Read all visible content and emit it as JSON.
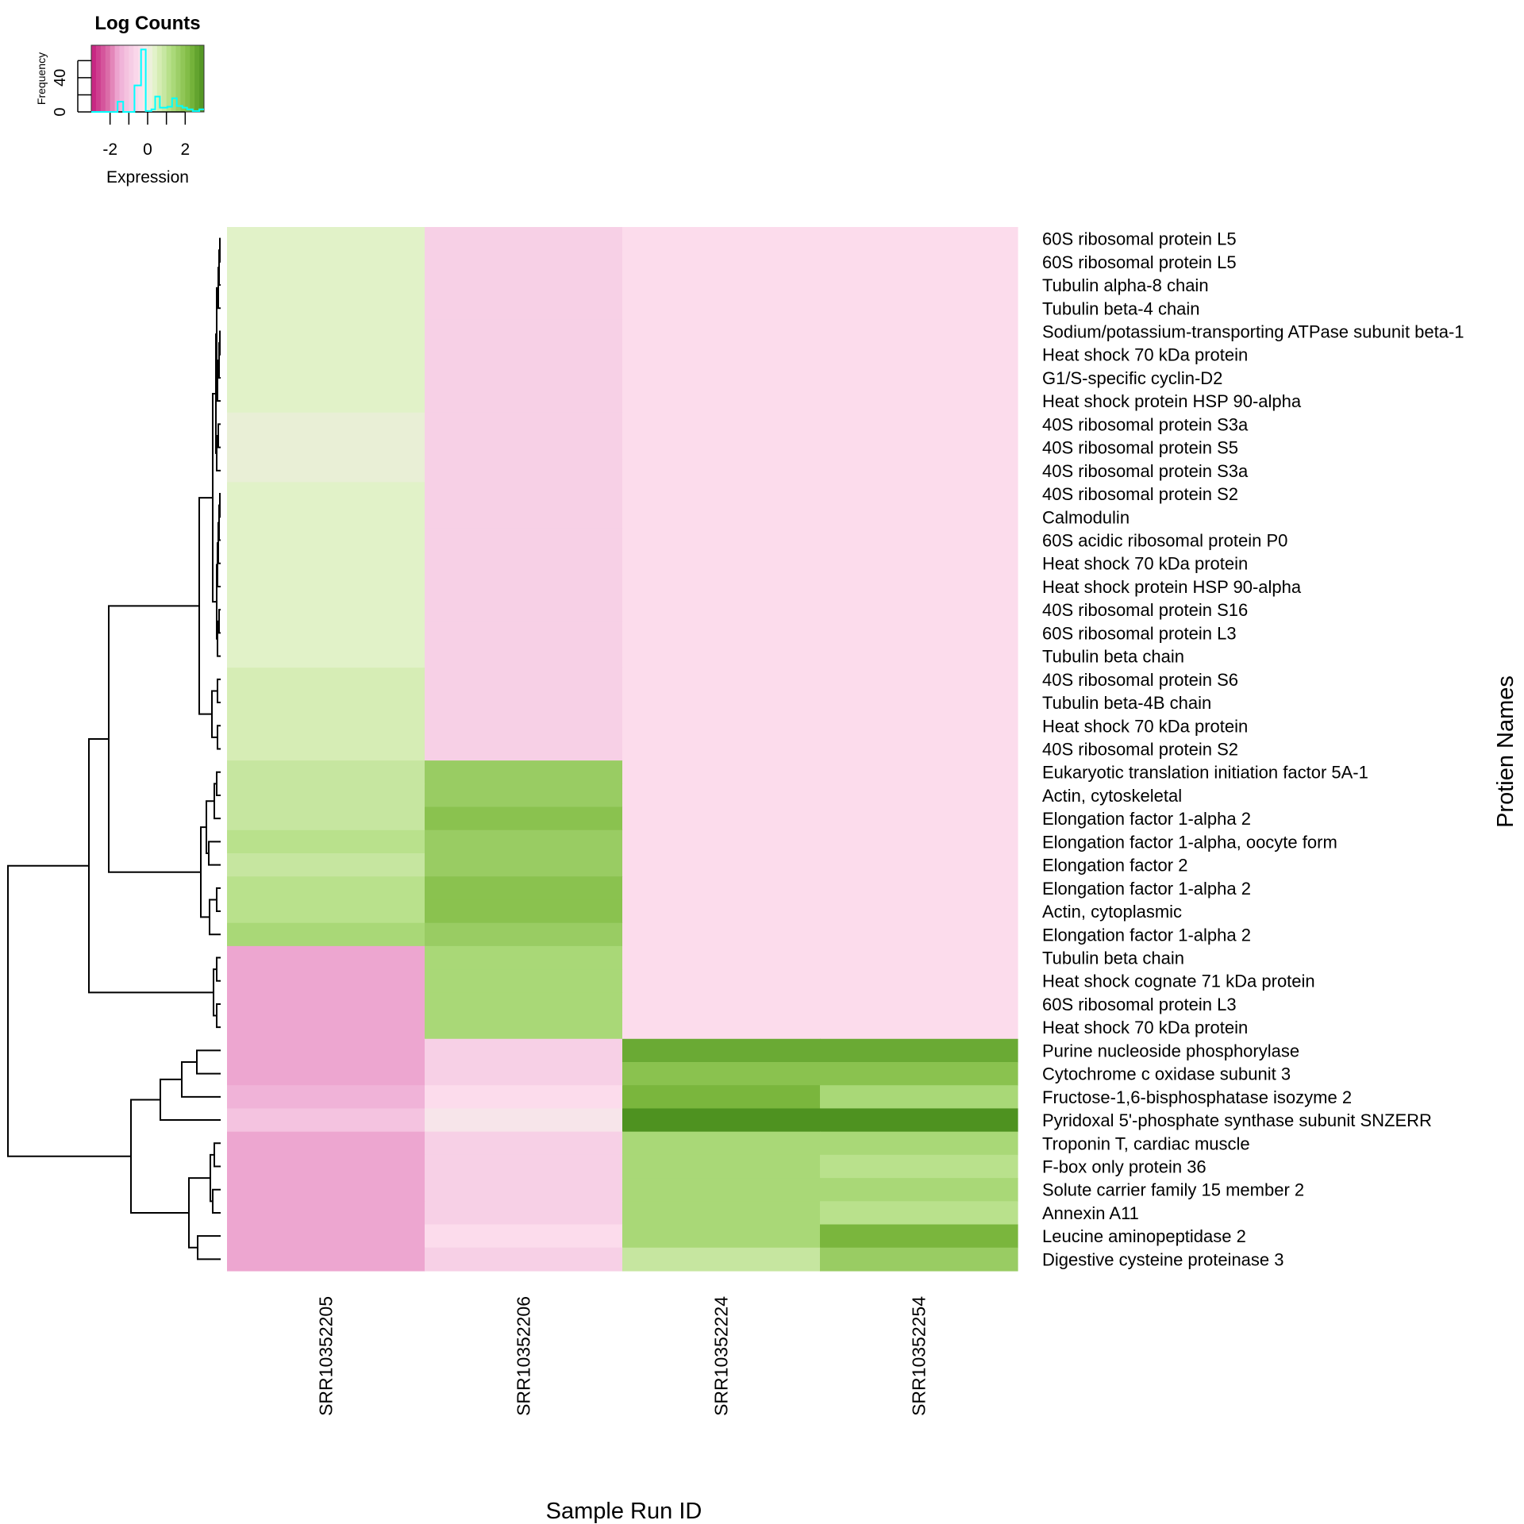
{
  "chart_data": {
    "type": "heatmap",
    "title": "",
    "xlabel": "Sample Run ID",
    "ylabel": "Protien Names",
    "columns": [
      "SRR10352205",
      "SRR10352206",
      "SRR10352224",
      "SRR10352254"
    ],
    "rows": [
      {
        "name": "60S ribosomal protein L5",
        "values": [
          0.4,
          -0.8,
          -0.5,
          -0.5
        ]
      },
      {
        "name": "60S ribosomal protein L5",
        "values": [
          0.4,
          -0.8,
          -0.5,
          -0.5
        ]
      },
      {
        "name": "Tubulin alpha-8 chain",
        "values": [
          0.4,
          -0.8,
          -0.5,
          -0.5
        ]
      },
      {
        "name": "Tubulin beta-4 chain",
        "values": [
          0.4,
          -0.8,
          -0.5,
          -0.5
        ]
      },
      {
        "name": "Sodium/potassium-transporting ATPase subunit beta-1",
        "values": [
          0.4,
          -0.8,
          -0.5,
          -0.5
        ]
      },
      {
        "name": "Heat shock 70 kDa protein",
        "values": [
          0.4,
          -0.8,
          -0.5,
          -0.5
        ]
      },
      {
        "name": "G1/S-specific cyclin-D2",
        "values": [
          0.4,
          -0.8,
          -0.5,
          -0.5
        ]
      },
      {
        "name": "Heat shock protein HSP 90-alpha",
        "values": [
          0.4,
          -0.8,
          -0.5,
          -0.5
        ]
      },
      {
        "name": "40S ribosomal protein S3a",
        "values": [
          0.2,
          -0.8,
          -0.5,
          -0.5
        ]
      },
      {
        "name": "40S ribosomal protein S5",
        "values": [
          0.2,
          -0.8,
          -0.5,
          -0.5
        ]
      },
      {
        "name": "40S ribosomal protein S3a",
        "values": [
          0.2,
          -0.8,
          -0.5,
          -0.5
        ]
      },
      {
        "name": "40S ribosomal protein S2",
        "values": [
          0.4,
          -0.8,
          -0.5,
          -0.5
        ]
      },
      {
        "name": "Calmodulin",
        "values": [
          0.4,
          -0.8,
          -0.5,
          -0.5
        ]
      },
      {
        "name": "60S acidic ribosomal protein P0",
        "values": [
          0.4,
          -0.8,
          -0.5,
          -0.5
        ]
      },
      {
        "name": "Heat shock 70 kDa protein",
        "values": [
          0.4,
          -0.8,
          -0.5,
          -0.5
        ]
      },
      {
        "name": "Heat shock protein HSP 90-alpha",
        "values": [
          0.4,
          -0.8,
          -0.5,
          -0.5
        ]
      },
      {
        "name": "40S ribosomal protein S16",
        "values": [
          0.4,
          -0.8,
          -0.5,
          -0.5
        ]
      },
      {
        "name": "60S ribosomal protein L3",
        "values": [
          0.4,
          -0.8,
          -0.5,
          -0.5
        ]
      },
      {
        "name": "Tubulin beta chain",
        "values": [
          0.4,
          -0.8,
          -0.5,
          -0.5
        ]
      },
      {
        "name": "40S ribosomal protein S6",
        "values": [
          0.6,
          -0.8,
          -0.5,
          -0.5
        ]
      },
      {
        "name": "Tubulin beta-4B chain",
        "values": [
          0.6,
          -0.8,
          -0.5,
          -0.5
        ]
      },
      {
        "name": "Heat shock 70 kDa protein",
        "values": [
          0.6,
          -0.8,
          -0.5,
          -0.5
        ]
      },
      {
        "name": "40S ribosomal protein S2",
        "values": [
          0.6,
          -0.8,
          -0.5,
          -0.5
        ]
      },
      {
        "name": "Eukaryotic translation initiation factor 5A-1",
        "values": [
          0.9,
          1.7,
          -0.5,
          -0.5
        ]
      },
      {
        "name": "Actin, cytoskeletal",
        "values": [
          0.9,
          1.7,
          -0.5,
          -0.5
        ]
      },
      {
        "name": "Elongation factor 1-alpha 2",
        "values": [
          0.9,
          2.0,
          -0.5,
          -0.5
        ]
      },
      {
        "name": "Elongation factor 1-alpha, oocyte form",
        "values": [
          1.1,
          1.7,
          -0.5,
          -0.5
        ]
      },
      {
        "name": "Elongation factor 2",
        "values": [
          0.9,
          1.7,
          -0.5,
          -0.5
        ]
      },
      {
        "name": "Elongation factor 1-alpha 2",
        "values": [
          1.1,
          2.0,
          -0.5,
          -0.5
        ]
      },
      {
        "name": "Actin, cytoplasmic",
        "values": [
          1.1,
          2.0,
          -0.5,
          -0.5
        ]
      },
      {
        "name": "Elongation factor 1-alpha 2",
        "values": [
          1.4,
          1.7,
          -0.5,
          -0.5
        ]
      },
      {
        "name": "Tubulin beta chain",
        "values": [
          -1.6,
          1.4,
          -0.5,
          -0.5
        ]
      },
      {
        "name": "Heat shock cognate 71 kDa protein",
        "values": [
          -1.6,
          1.4,
          -0.5,
          -0.5
        ]
      },
      {
        "name": "60S ribosomal protein L3",
        "values": [
          -1.6,
          1.4,
          -0.5,
          -0.5
        ]
      },
      {
        "name": "Heat shock 70 kDa protein",
        "values": [
          -1.6,
          1.4,
          -0.5,
          -0.5
        ]
      },
      {
        "name": "Purine nucleoside phosphorylase",
        "values": [
          -1.6,
          -0.8,
          2.5,
          2.5
        ]
      },
      {
        "name": "Cytochrome c oxidase subunit 3",
        "values": [
          -1.6,
          -0.8,
          2.0,
          2.0
        ]
      },
      {
        "name": "Fructose-1,6-bisphosphatase isozyme 2",
        "values": [
          -1.4,
          -0.5,
          2.3,
          1.4
        ]
      },
      {
        "name": "Pyridoxal 5'-phosphate synthase subunit SNZERR",
        "values": [
          -1.1,
          -0.2,
          3.0,
          3.0
        ]
      },
      {
        "name": "Troponin T, cardiac muscle",
        "values": [
          -1.6,
          -0.8,
          1.4,
          1.4
        ]
      },
      {
        "name": "F-box only protein 36",
        "values": [
          -1.6,
          -0.8,
          1.4,
          1.1
        ]
      },
      {
        "name": "Solute carrier family 15 member 2",
        "values": [
          -1.6,
          -0.8,
          1.4,
          1.4
        ]
      },
      {
        "name": "Annexin A11",
        "values": [
          -1.6,
          -0.8,
          1.4,
          1.1
        ]
      },
      {
        "name": "Leucine aminopeptidase 2",
        "values": [
          -1.6,
          -0.5,
          1.4,
          2.3
        ]
      },
      {
        "name": "Digestive cysteine proteinase 3",
        "values": [
          -1.6,
          -0.8,
          0.9,
          1.7
        ]
      }
    ],
    "color_scale": {
      "range": [
        -3,
        3
      ],
      "stops": [
        {
          "value": -3.0,
          "color": "#C51B7D"
        },
        {
          "value": -2.0,
          "color": "#DE77AE"
        },
        {
          "value": -1.6,
          "color": "#EDA6D0"
        },
        {
          "value": -1.4,
          "color": "#F0B3D8"
        },
        {
          "value": -1.1,
          "color": "#F4C3E0"
        },
        {
          "value": -0.8,
          "color": "#F7D0E6"
        },
        {
          "value": -0.5,
          "color": "#FCDCEC"
        },
        {
          "value": -0.2,
          "color": "#F7E5EA"
        },
        {
          "value": 0.0,
          "color": "#F3F1E6"
        },
        {
          "value": 0.2,
          "color": "#E9EFD6"
        },
        {
          "value": 0.4,
          "color": "#E1F2C8"
        },
        {
          "value": 0.6,
          "color": "#D6EDB5"
        },
        {
          "value": 0.9,
          "color": "#C6E6A0"
        },
        {
          "value": 1.1,
          "color": "#B9E18C"
        },
        {
          "value": 1.4,
          "color": "#A9D877"
        },
        {
          "value": 1.7,
          "color": "#99CC63"
        },
        {
          "value": 2.0,
          "color": "#8AC24F"
        },
        {
          "value": 2.3,
          "color": "#7AB63D"
        },
        {
          "value": 2.5,
          "color": "#6AAA34"
        },
        {
          "value": 3.0,
          "color": "#4E9220"
        }
      ]
    },
    "row_dendrogram": true,
    "legend": {
      "title": "Log Counts",
      "xlabel": "Expression",
      "ylabel": "Frequency",
      "x_ticks": [
        -2,
        -1,
        0,
        1,
        2
      ],
      "x_tick_labels": [
        "-2",
        "0",
        "2"
      ],
      "x_range": [
        -3,
        3
      ],
      "y_ticks": [
        0,
        20,
        40,
        60
      ],
      "y_tick_labels": [
        "0",
        "40"
      ],
      "histogram_color": "#00FFFF",
      "histogram": {
        "bin_edges": [
          -3.0,
          -1.6,
          -1.3,
          -0.7,
          -0.35,
          -0.1,
          0.2,
          0.4,
          0.65,
          1.05,
          1.3,
          1.55,
          1.85,
          2.1,
          2.4,
          2.75,
          3.0
        ],
        "counts": [
          0,
          12,
          0,
          31,
          73,
          1,
          3,
          18,
          5,
          6,
          16,
          7,
          5,
          3,
          1,
          3
        ]
      },
      "placement": "top-left"
    }
  }
}
